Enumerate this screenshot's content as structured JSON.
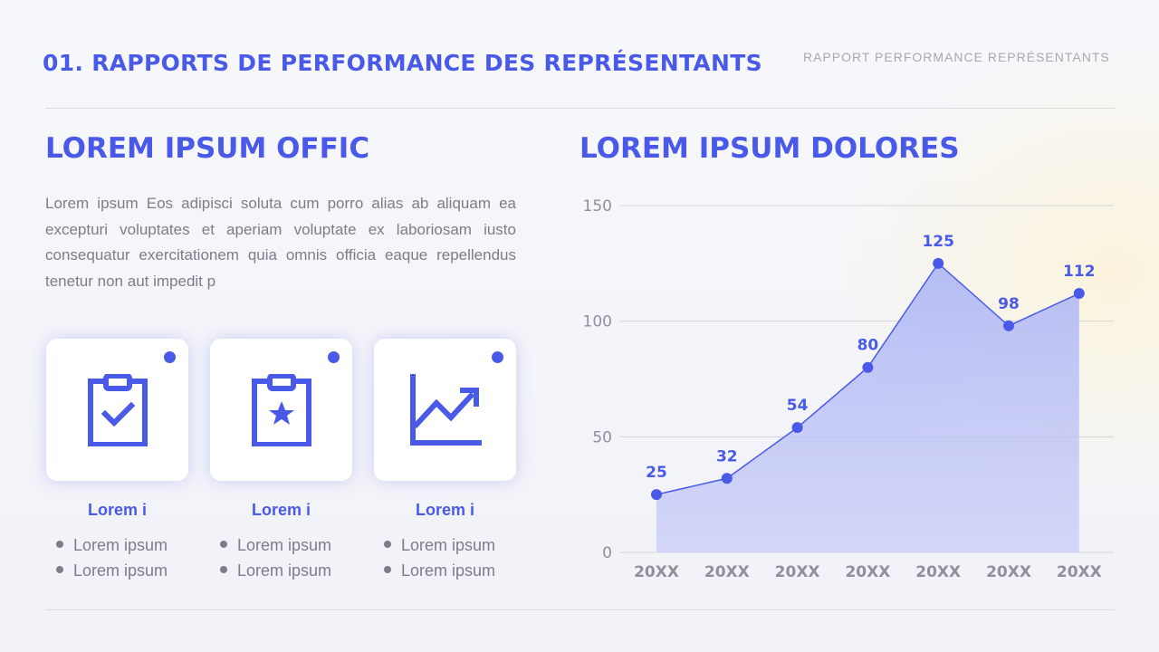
{
  "header": {
    "title": "01. RAPPORTS DE PERFORMANCE DES REPRÉSENTANTS",
    "subtitle": "RAPPORT PERFORMANCE REPRÉSENTANTS"
  },
  "left": {
    "heading": "LOREM IPSUM OFFIC",
    "paragraph": "Lorem ipsum Eos adipisci soluta cum porro alias ab aliquam ea excepturi voluptates et aperiam voluptate ex laboriosam iusto consequatur exercitationem quia omnis officia eaque repellendus tenetur non aut impedit p",
    "cards": [
      {
        "icon": "clipboard-check-icon",
        "title": "Lorem i",
        "items": [
          "Lorem ipsum",
          "Lorem ipsum"
        ]
      },
      {
        "icon": "clipboard-star-icon",
        "title": "Lorem i",
        "items": [
          "Lorem ipsum",
          "Lorem ipsum"
        ]
      },
      {
        "icon": "trend-chart-icon",
        "title": "Lorem i",
        "items": [
          "Lorem ipsum",
          "Lorem ipsum"
        ]
      }
    ]
  },
  "right": {
    "heading": "LOREM IPSUM DOLORES"
  },
  "colors": {
    "accent": "#4a5ae8",
    "text": "#7b7e88",
    "area_top": "#aab3f6",
    "area_bottom": "#c9cdf7"
  },
  "chart_data": {
    "type": "area",
    "categories": [
      "20XX",
      "20XX",
      "20XX",
      "20XX",
      "20XX",
      "20XX",
      "20XX"
    ],
    "values": [
      25,
      32,
      54,
      80,
      125,
      98,
      112
    ],
    "ylim": [
      0,
      150
    ],
    "yticks": [
      0,
      50,
      100,
      150
    ],
    "grid": true,
    "data_labels": true
  }
}
